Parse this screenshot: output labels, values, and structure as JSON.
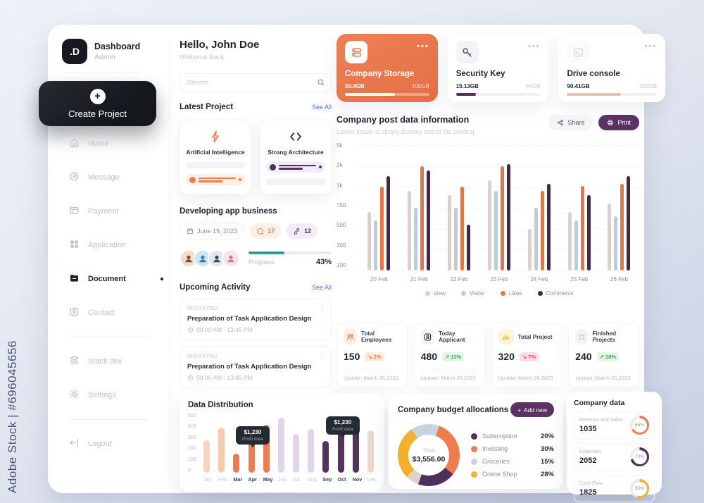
{
  "watermark": {
    "side_text": "Adobe Stock | #696045656",
    "diagonal_text": "Adobe Stock"
  },
  "sidebar": {
    "logo": {
      "mark": ".D",
      "title": "Dashboard",
      "subtitle": "Admin"
    },
    "create_button": "Create Project",
    "items": [
      {
        "label": "Home"
      },
      {
        "label": "Message"
      },
      {
        "label": "Payment"
      },
      {
        "label": "Application"
      },
      {
        "label": "Document",
        "active": true
      },
      {
        "label": "Contact"
      },
      {
        "label": "Stack dev"
      },
      {
        "label": "Settings"
      },
      {
        "label": "Logout"
      }
    ]
  },
  "header": {
    "greeting": "Hello, John Doe",
    "subtitle": "Welcome Back",
    "search_placeholder": "Search"
  },
  "latest_project": {
    "title": "Latest Project",
    "see_all": "See All",
    "cards": [
      {
        "title": "Artificial Intelligence",
        "icon": "bolt-icon",
        "accent": "#ec7b50"
      },
      {
        "title": "Strong Architecture",
        "icon": "code-icon",
        "accent": "#4e3158"
      }
    ]
  },
  "project": {
    "title": "Developing app business",
    "date": "June 19, 2023",
    "comments": "17",
    "links": "12",
    "progress_label": "Progress",
    "progress_value": "43%",
    "progress_pct": 43,
    "progress_color": "#21a48c"
  },
  "upcoming": {
    "title": "Upcoming Activity",
    "see_all": "See All",
    "items": [
      {
        "status": "WORKING",
        "title": "Preparation of Task Application Design",
        "time": "09:00 AM - 13:45 PM"
      },
      {
        "status": "WORKING",
        "title": "Preparation of Task Application Design",
        "time": "09:00 AM - 13:45 PM"
      }
    ]
  },
  "storage_cards": [
    {
      "title": "Company Storage",
      "used": "59.4GB",
      "total": "100GB",
      "pct": 59,
      "bar_color": "#ffffff",
      "style": "orange",
      "icon": "server-icon"
    },
    {
      "title": "Security Key",
      "used": "15.13GB",
      "total": "64GB",
      "pct": 24,
      "bar_color": "#53305e",
      "style": "white",
      "icon": "key-icon"
    },
    {
      "title": "Drive console",
      "used": "90.41GB",
      "total": "150GB",
      "pct": 60,
      "bar_color": "#e6c2b5",
      "style": "white",
      "icon": "terminal-icon"
    }
  ],
  "post_chart": {
    "title": "Company post data information",
    "subtitle": "Lorem Ipsum is simply dummy text of the printing",
    "share_label": "Share",
    "print_label": "Print"
  },
  "stats_cards": [
    {
      "label": "Total Employees",
      "value": "150",
      "change": "2%",
      "trend": "down",
      "update": "Update: Match 26,2023"
    },
    {
      "label": "Today Applicant",
      "value": "480",
      "change": "11%",
      "trend": "up",
      "update": "Update: Match 26,2023"
    },
    {
      "label": "Total Project",
      "value": "320",
      "change": "7%",
      "trend": "pink",
      "update": "Update: Match 26,2023"
    },
    {
      "label": "Finished Projects",
      "value": "240",
      "change": "18%",
      "trend": "up",
      "update": "Update: Match 26,2023"
    }
  ],
  "distribution": {
    "title": "Data Distribution"
  },
  "budget": {
    "title": "Company budget allocations",
    "add_button": "Add new",
    "total_label": "Total",
    "total_value": "$3,556.00",
    "legend": [
      {
        "label": "Subscription",
        "value": "20%",
        "color": "#4e3158"
      },
      {
        "label": "Investing",
        "value": "30%",
        "color": "#ef7c50"
      },
      {
        "label": "Groceries",
        "value": "15%",
        "color": "#c6d4dd"
      },
      {
        "label": "Online Shop",
        "value": "28%",
        "color": "#f2b02c"
      }
    ]
  },
  "company_data": {
    "title": "Company data",
    "rows": [
      {
        "label": "Revenue and Sales",
        "value": "1035",
        "pct": "66%",
        "pct_num": 66,
        "color": "#ef7c50"
      },
      {
        "label": "Expenses",
        "value": "2052",
        "pct": "70%",
        "pct_num": 70,
        "color": "#4e3158"
      },
      {
        "label": "Cash Flow",
        "value": "1825",
        "pct": "55%",
        "pct_num": 55,
        "color": "#f2b02c"
      }
    ]
  },
  "chart_data": [
    {
      "type": "bar",
      "title": "Company post data information",
      "categories": [
        "20 Feb",
        "21 Feb",
        "22 Feb",
        "23 Feb",
        "24 Feb",
        "25 Feb",
        "26 Feb"
      ],
      "series": [
        {
          "name": "View",
          "color": "#ddcfca",
          "values": [
            700,
            950,
            900,
            1300,
            500,
            700,
            800
          ]
        },
        {
          "name": "Visitor",
          "color": "#bccdd8",
          "values": [
            600,
            750,
            750,
            950,
            750,
            600,
            650
          ]
        },
        {
          "name": "Likes",
          "color": "#e8744a",
          "values": [
            1000,
            2000,
            1000,
            2000,
            950,
            1050,
            1150
          ]
        },
        {
          "name": "Comments",
          "color": "#3f2a4a",
          "values": [
            1500,
            1800,
            550,
            2300,
            1150,
            900,
            1500
          ]
        }
      ],
      "y_ticks": [
        "5k",
        "2k",
        "1k",
        "750",
        "500",
        "300",
        "100"
      ],
      "y_tick_values": [
        100,
        300,
        500,
        750,
        1000,
        2000,
        5000
      ],
      "legend_position": "bottom",
      "grid": true
    },
    {
      "type": "bar",
      "title": "Data Distribution",
      "categories": [
        "Jan",
        "Feb",
        "Mar",
        "Apr",
        "May",
        "Jun",
        "Jul",
        "Aug",
        "Sep",
        "Oct",
        "Nov",
        "Dec"
      ],
      "values": [
        275,
        380,
        160,
        350,
        405,
        465,
        330,
        370,
        270,
        435,
        445,
        360
      ],
      "colors": [
        "#fbd3bc",
        "#f9c9ae",
        "#ef7c50",
        "#ef7c50",
        "#ef7c50",
        "#e2d5ea",
        "#e2d5ea",
        "#e2d5ea",
        "#53355c",
        "#53355c",
        "#53355c",
        "#e9d8d0"
      ],
      "muted_categories": [
        "Jan",
        "Feb",
        "Jun",
        "Jul",
        "Aug",
        "Dec"
      ],
      "y_ticks": [
        "500",
        "400",
        "300",
        "200",
        "100",
        "0"
      ],
      "ylim": [
        0,
        500
      ],
      "tooltips": [
        {
          "value": "$1,230",
          "label": "Profit data",
          "anchor": "Apr"
        },
        {
          "value": "$1,230",
          "label": "Profit data",
          "anchor": "Oct"
        }
      ]
    },
    {
      "type": "donut",
      "title": "Company budget allocations",
      "total_label": "Total",
      "total_value": "$3,556.00",
      "slices": [
        {
          "label": "Investing",
          "pct": 30,
          "color": "#ef7c50"
        },
        {
          "label": "Subscription",
          "pct": 20,
          "color": "#4e3158"
        },
        {
          "label": "",
          "pct": 7,
          "color": "#ded3cb"
        },
        {
          "label": "Online Shop",
          "pct": 28,
          "color": "#f2b02c"
        },
        {
          "label": "Groceries",
          "pct": 15,
          "color": "#c6d4dd"
        }
      ],
      "start_angle_deg": 20
    }
  ]
}
